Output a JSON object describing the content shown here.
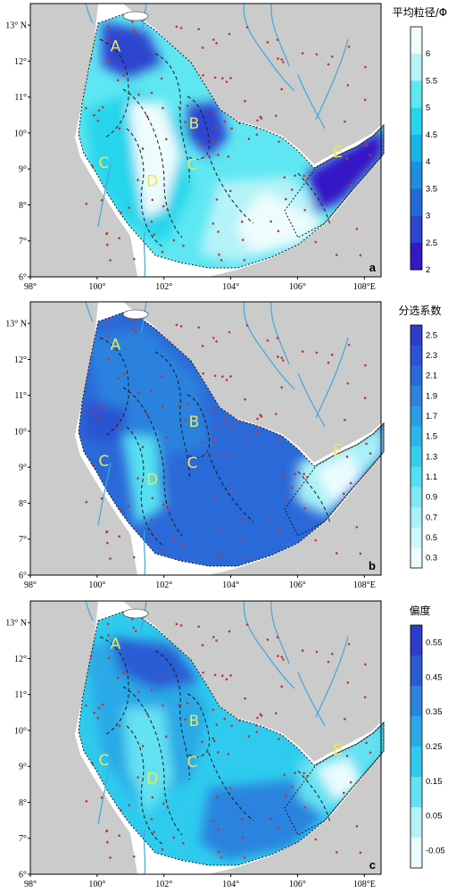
{
  "chart_data": {
    "type": "map_contour",
    "panels": [
      {
        "label": "a",
        "colorbar": {
          "title": "平均粒径/Φ",
          "ticks": [
            "6",
            "5.5",
            "5",
            "4.5",
            "4",
            "3.5",
            "3",
            "2.5",
            "2"
          ],
          "colors": [
            "#eefcfd",
            "#b5f3f8",
            "#5ee7f2",
            "#25d5ec",
            "#18b4e6",
            "#1d8ee0",
            "#226ad7",
            "#2d45cf",
            "#3418c6"
          ]
        },
        "zones": [
          "A",
          "B",
          "C",
          "C",
          "D",
          "E"
        ]
      },
      {
        "label": "b",
        "colorbar": {
          "title": "分选系数",
          "ticks": [
            "2.5",
            "2.3",
            "2.1",
            "1.9",
            "1.7",
            "1.5",
            "1.3",
            "1.1",
            "0.9",
            "0.7",
            "0.5",
            "0.3"
          ],
          "colors": [
            "#2c3ccc",
            "#2b52d2",
            "#2b69d8",
            "#2c82de",
            "#2a9ce3",
            "#29b7e8",
            "#32ceee",
            "#55e0f1",
            "#7fe9f4",
            "#a8f1f7",
            "#cdf7fa",
            "#ecfcfd"
          ]
        },
        "zones": [
          "A",
          "B",
          "C",
          "C",
          "D",
          "E"
        ]
      },
      {
        "label": "c",
        "colorbar": {
          "title": "偏度",
          "ticks": [
            "0.55",
            "0.45",
            "0.35",
            "0.25",
            "0.15",
            "0.05",
            "-0.05"
          ],
          "colors": [
            "#2c3ccc",
            "#2b5bd3",
            "#2b83de",
            "#2aa9e6",
            "#2ecbee",
            "#64e2f2",
            "#b4f2f8",
            "#eafcfd"
          ]
        },
        "zones": [
          "A",
          "B",
          "C",
          "C",
          "D",
          "E"
        ]
      }
    ],
    "xaxis": {
      "ticks": [
        98,
        100,
        102,
        104,
        106,
        108
      ],
      "tick_labels": [
        "98°",
        "100°",
        "102°",
        "104°",
        "106°",
        "108°E"
      ],
      "range": [
        98,
        108.5
      ]
    },
    "yaxis": {
      "ticks": [
        6,
        7,
        8,
        9,
        10,
        11,
        12,
        13
      ],
      "tick_labels": [
        "6°",
        "7°",
        "8°",
        "9°",
        "10°",
        "11°",
        "12°",
        "13° N"
      ],
      "range": [
        6,
        13.6
      ]
    },
    "zone_positions": [
      {
        "zone": "A",
        "lon": 100.55,
        "lat": 12.4
      },
      {
        "zone": "B",
        "lon": 102.9,
        "lat": 10.25
      },
      {
        "zone": "C",
        "lon": 100.2,
        "lat": 9.15
      },
      {
        "zone": "C",
        "lon": 102.85,
        "lat": 9.1
      },
      {
        "zone": "D",
        "lon": 101.65,
        "lat": 8.65
      },
      {
        "zone": "E",
        "lon": 107.2,
        "lat": 9.45
      }
    ],
    "colors": {
      "land": "#cbcbcb",
      "river": "#3fa7dc",
      "sample_dot": "#c03535",
      "boundary": "#1a1a1a",
      "zone_label": "#e8e85a"
    }
  }
}
